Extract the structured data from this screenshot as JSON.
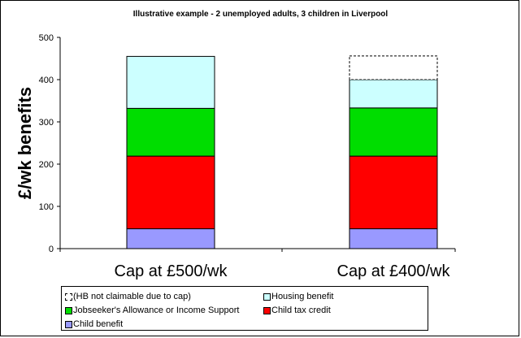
{
  "chart_data": {
    "type": "bar",
    "stacked": true,
    "title": "Illustrative example - 2 unemployed adults, 3 children in Liverpool",
    "ylabel": "£/wk benefits",
    "xlabel": "",
    "ylim": [
      0,
      500
    ],
    "yticks": [
      "0",
      "100",
      "200",
      "300",
      "400",
      "500"
    ],
    "categories": [
      "Cap at £500/wk",
      "Cap at £400/wk"
    ],
    "series": [
      {
        "name": "Child benefit",
        "color": "#9999ff",
        "values": [
          47,
          47
        ]
      },
      {
        "name": "Child tax credit",
        "color": "#ff0000",
        "values": [
          172,
          172
        ]
      },
      {
        "name": "Jobseeker's Allowance or Income Support",
        "color": "#00dd00",
        "values": [
          113,
          114
        ]
      },
      {
        "name": "Housing benefit",
        "color": "#ccffff",
        "values": [
          123,
          67
        ]
      },
      {
        "name": "(HB not claimable due to cap)",
        "color": "#ffffff",
        "dashed": true,
        "values": [
          0,
          56
        ]
      }
    ],
    "grid": false,
    "legend_position": "bottom"
  },
  "legend": [
    {
      "label": "(HB not claimable due to cap)",
      "color": "#ffffff",
      "dashed": true
    },
    {
      "label": "Housing benefit",
      "color": "#ccffff"
    },
    {
      "label": "Jobseeker's Allowance or Income Support",
      "color": "#00dd00"
    },
    {
      "label": "Child tax credit",
      "color": "#ff0000"
    },
    {
      "label": "Child benefit",
      "color": "#9999ff"
    }
  ]
}
